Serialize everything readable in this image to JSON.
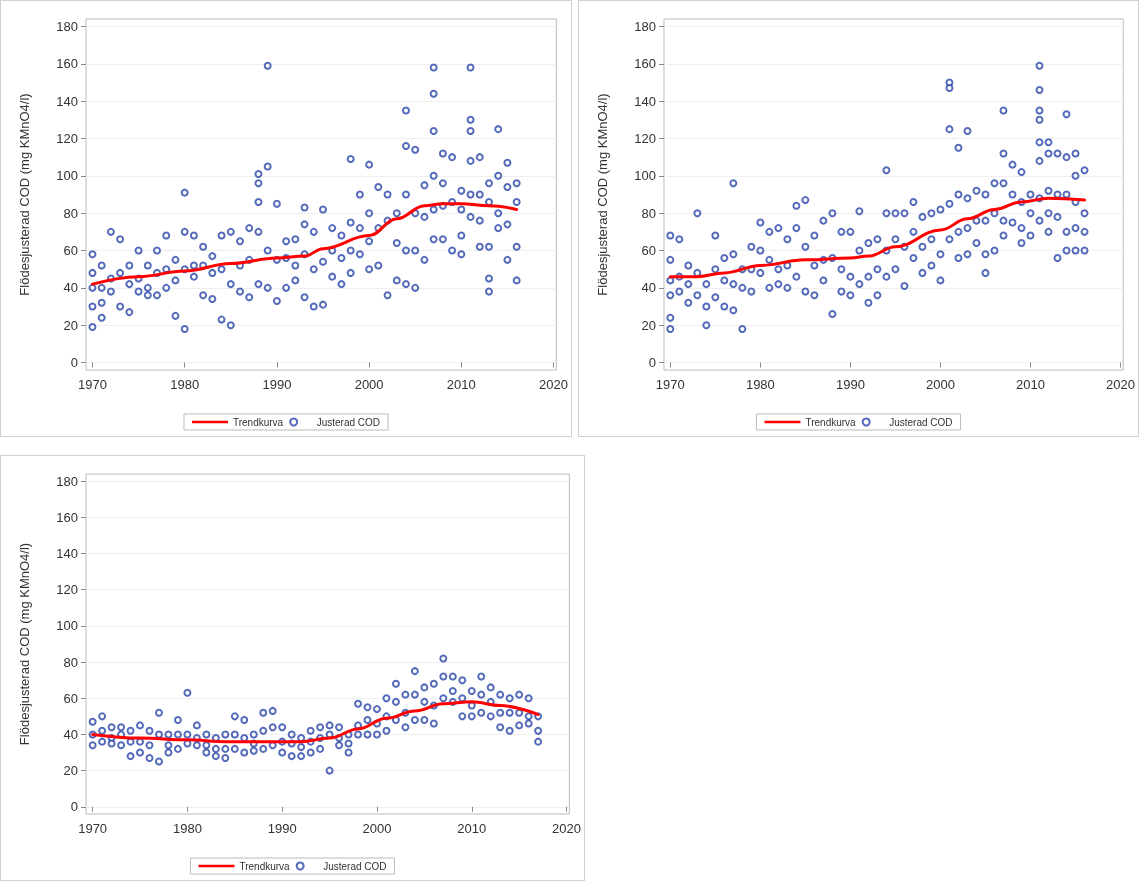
{
  "chart_data": [
    {
      "type": "scatter",
      "ylabel": "Flödesjusterad COD (mg KMnO4/l)",
      "xlim": [
        1969.3,
        2020.3
      ],
      "ylim": [
        -4,
        184
      ],
      "xticks": [
        1970,
        1980,
        1990,
        2000,
        2010,
        2020
      ],
      "yticks": [
        0,
        20,
        40,
        60,
        80,
        100,
        120,
        140,
        160,
        180
      ],
      "grid": "y",
      "legend": "bottom",
      "series": [
        {
          "type": "line",
          "name": "Trendkurva",
          "color": "#ff0000",
          "marker": "none",
          "x": [
            1970,
            1975,
            1980,
            1985,
            1990,
            1993,
            1995,
            2000,
            2003,
            2006,
            2008,
            2010,
            2013,
            2016
          ],
          "values": [
            42,
            46,
            49,
            53,
            56,
            57,
            61,
            68,
            77,
            84,
            85,
            85,
            84,
            82
          ]
        },
        {
          "name": "Justerad COD",
          "color": "#2a46a8",
          "marker": "circle",
          "x": [
            1970,
            1970,
            1970,
            1970,
            1970,
            1971,
            1971,
            1971,
            1971,
            1972,
            1972,
            1972,
            1973,
            1973,
            1973,
            1974,
            1974,
            1974,
            1975,
            1975,
            1975,
            1976,
            1976,
            1976,
            1977,
            1977,
            1977,
            1978,
            1978,
            1978,
            1979,
            1979,
            1979,
            1980,
            1980,
            1980,
            1980,
            1981,
            1981,
            1981,
            1982,
            1982,
            1982,
            1983,
            1983,
            1983,
            1984,
            1984,
            1984,
            1985,
            1985,
            1985,
            1986,
            1986,
            1986,
            1987,
            1987,
            1987,
            1988,
            1988,
            1988,
            1988,
            1988,
            1989,
            1989,
            1989,
            1989,
            1990,
            1990,
            1990,
            1991,
            1991,
            1991,
            1992,
            1992,
            1992,
            1993,
            1993,
            1993,
            1993,
            1994,
            1994,
            1994,
            1995,
            1995,
            1995,
            1996,
            1996,
            1996,
            1997,
            1997,
            1997,
            1998,
            1998,
            1998,
            1998,
            1999,
            1999,
            1999,
            2000,
            2000,
            2000,
            2000,
            2001,
            2001,
            2001,
            2002,
            2002,
            2002,
            2003,
            2003,
            2003,
            2004,
            2004,
            2004,
            2004,
            2004,
            2005,
            2005,
            2005,
            2005,
            2006,
            2006,
            2006,
            2007,
            2007,
            2007,
            2007,
            2007,
            2007,
            2008,
            2008,
            2008,
            2008,
            2009,
            2009,
            2009,
            2010,
            2010,
            2010,
            2010,
            2011,
            2011,
            2011,
            2011,
            2011,
            2011,
            2012,
            2012,
            2012,
            2012,
            2013,
            2013,
            2013,
            2013,
            2013,
            2014,
            2014,
            2014,
            2014,
            2015,
            2015,
            2015,
            2015,
            2016,
            2016,
            2016,
            2016
          ],
          "values": [
            58,
            48,
            40,
            30,
            19,
            52,
            40,
            32,
            24,
            70,
            45,
            38,
            66,
            48,
            30,
            52,
            42,
            27,
            60,
            45,
            38,
            52,
            40,
            36,
            60,
            48,
            36,
            68,
            50,
            40,
            55,
            44,
            25,
            91,
            70,
            50,
            18,
            68,
            52,
            46,
            62,
            52,
            36,
            57,
            48,
            34,
            68,
            50,
            23,
            70,
            42,
            20,
            65,
            52,
            38,
            72,
            55,
            35,
            101,
            96,
            86,
            70,
            42,
            159,
            105,
            60,
            40,
            85,
            55,
            33,
            65,
            56,
            40,
            66,
            52,
            44,
            83,
            74,
            58,
            35,
            70,
            50,
            30,
            82,
            54,
            31,
            72,
            60,
            46,
            68,
            56,
            42,
            109,
            75,
            60,
            48,
            90,
            72,
            58,
            106,
            80,
            65,
            50,
            94,
            72,
            52,
            90,
            76,
            36,
            80,
            64,
            44,
            135,
            116,
            90,
            60,
            42,
            114,
            80,
            60,
            40,
            95,
            78,
            55,
            158,
            144,
            124,
            100,
            82,
            66,
            112,
            96,
            84,
            66,
            110,
            86,
            60,
            92,
            82,
            68,
            58,
            158,
            130,
            124,
            108,
            90,
            78,
            110,
            90,
            76,
            62,
            96,
            86,
            62,
            45,
            38,
            125,
            100,
            80,
            72,
            107,
            94,
            74,
            55,
            96,
            86,
            62,
            44
          ]
        }
      ]
    },
    {
      "type": "scatter",
      "ylabel": "Flödesjusterad COD (mg KMnO4/l)",
      "xlim": [
        1969.3,
        2020.3
      ],
      "ylim": [
        -4,
        184
      ],
      "xticks": [
        1970,
        1980,
        1990,
        2000,
        2010,
        2020
      ],
      "yticks": [
        0,
        20,
        40,
        60,
        80,
        100,
        120,
        140,
        160,
        180
      ],
      "grid": "y",
      "legend": "bottom",
      "series": [
        {
          "type": "line",
          "name": "Trendkurva",
          "color": "#ff0000",
          "marker": "none",
          "x": [
            1970,
            1973,
            1976,
            1980,
            1985,
            1990,
            1992,
            1995,
            2000,
            2003,
            2006,
            2009,
            2012,
            2016
          ],
          "values": [
            46,
            46,
            48,
            52,
            55,
            56,
            57,
            62,
            71,
            77,
            82,
            86,
            88,
            87
          ]
        },
        {
          "name": "Justerad COD",
          "color": "#2a46a8",
          "marker": "circle",
          "x": [
            1970,
            1970,
            1970,
            1970,
            1970,
            1970,
            1971,
            1971,
            1971,
            1972,
            1972,
            1972,
            1973,
            1973,
            1973,
            1974,
            1974,
            1974,
            1975,
            1975,
            1975,
            1976,
            1976,
            1976,
            1977,
            1977,
            1977,
            1977,
            1978,
            1978,
            1978,
            1979,
            1979,
            1979,
            1980,
            1980,
            1980,
            1981,
            1981,
            1981,
            1982,
            1982,
            1982,
            1983,
            1983,
            1983,
            1984,
            1984,
            1984,
            1985,
            1985,
            1985,
            1986,
            1986,
            1986,
            1987,
            1987,
            1987,
            1988,
            1988,
            1988,
            1989,
            1989,
            1989,
            1990,
            1990,
            1990,
            1991,
            1991,
            1991,
            1992,
            1992,
            1992,
            1993,
            1993,
            1993,
            1994,
            1994,
            1994,
            1994,
            1995,
            1995,
            1995,
            1996,
            1996,
            1996,
            1997,
            1997,
            1997,
            1998,
            1998,
            1998,
            1999,
            1999,
            1999,
            2000,
            2000,
            2000,
            2001,
            2001,
            2001,
            2001,
            2001,
            2002,
            2002,
            2002,
            2002,
            2003,
            2003,
            2003,
            2003,
            2004,
            2004,
            2004,
            2005,
            2005,
            2005,
            2005,
            2006,
            2006,
            2006,
            2007,
            2007,
            2007,
            2007,
            2007,
            2008,
            2008,
            2008,
            2009,
            2009,
            2009,
            2009,
            2010,
            2010,
            2010,
            2011,
            2011,
            2011,
            2011,
            2011,
            2011,
            2011,
            2011,
            2012,
            2012,
            2012,
            2012,
            2012,
            2013,
            2013,
            2013,
            2013,
            2014,
            2014,
            2014,
            2014,
            2014,
            2015,
            2015,
            2015,
            2015,
            2015,
            2016,
            2016,
            2016,
            2016
          ],
          "values": [
            68,
            55,
            44,
            36,
            24,
            18,
            66,
            46,
            38,
            52,
            42,
            32,
            80,
            48,
            36,
            42,
            30,
            20,
            68,
            50,
            35,
            56,
            44,
            30,
            96,
            58,
            42,
            28,
            50,
            40,
            18,
            62,
            50,
            38,
            75,
            60,
            48,
            70,
            55,
            40,
            72,
            50,
            42,
            66,
            52,
            40,
            84,
            72,
            46,
            87,
            62,
            38,
            68,
            52,
            36,
            76,
            55,
            44,
            80,
            56,
            26,
            70,
            50,
            38,
            70,
            46,
            36,
            81,
            60,
            42,
            64,
            46,
            32,
            66,
            50,
            36,
            103,
            80,
            60,
            46,
            80,
            66,
            50,
            80,
            62,
            41,
            86,
            70,
            56,
            78,
            62,
            48,
            80,
            66,
            52,
            82,
            58,
            44,
            150,
            147,
            125,
            85,
            66,
            115,
            90,
            70,
            56,
            124,
            88,
            72,
            58,
            92,
            76,
            64,
            90,
            76,
            58,
            48,
            96,
            80,
            60,
            135,
            112,
            96,
            76,
            68,
            106,
            90,
            75,
            102,
            86,
            72,
            64,
            90,
            80,
            68,
            159,
            146,
            135,
            130,
            118,
            108,
            88,
            76,
            118,
            112,
            92,
            80,
            70,
            112,
            90,
            78,
            56,
            133,
            110,
            90,
            70,
            60,
            112,
            100,
            86,
            72,
            60,
            103,
            80,
            70,
            60
          ]
        }
      ]
    },
    {
      "type": "scatter",
      "ylabel": "Flödesjusterad COD (mg KMnO4/l)",
      "xlim": [
        1969.3,
        2020.3
      ],
      "ylim": [
        -4,
        184
      ],
      "xticks": [
        1970,
        1980,
        1990,
        2000,
        2010,
        2020
      ],
      "yticks": [
        0,
        20,
        40,
        60,
        80,
        100,
        120,
        140,
        160,
        180
      ],
      "grid": "y",
      "legend": "bottom",
      "series": [
        {
          "type": "line",
          "name": "Trendkurva",
          "color": "#ff0000",
          "marker": "none",
          "x": [
            1970,
            1975,
            1980,
            1984,
            1988,
            1992,
            1995,
            1998,
            2001,
            2004,
            2007,
            2010,
            2013,
            2017
          ],
          "values": [
            40,
            38,
            37,
            36,
            36,
            36,
            38,
            43,
            49,
            53,
            57,
            58,
            56,
            51
          ]
        },
        {
          "name": "Justerad COD",
          "color": "#2a46a8",
          "marker": "circle",
          "x": [
            1970,
            1970,
            1970,
            1971,
            1971,
            1971,
            1972,
            1972,
            1972,
            1973,
            1973,
            1973,
            1974,
            1974,
            1974,
            1975,
            1975,
            1975,
            1976,
            1976,
            1976,
            1977,
            1977,
            1977,
            1978,
            1978,
            1978,
            1979,
            1979,
            1979,
            1980,
            1980,
            1980,
            1981,
            1981,
            1981,
            1982,
            1982,
            1982,
            1983,
            1983,
            1983,
            1984,
            1984,
            1984,
            1985,
            1985,
            1985,
            1986,
            1986,
            1986,
            1987,
            1987,
            1987,
            1988,
            1988,
            1988,
            1989,
            1989,
            1989,
            1990,
            1990,
            1990,
            1991,
            1991,
            1991,
            1992,
            1992,
            1992,
            1993,
            1993,
            1993,
            1994,
            1994,
            1994,
            1995,
            1995,
            1995,
            1996,
            1996,
            1996,
            1997,
            1997,
            1997,
            1998,
            1998,
            1998,
            1999,
            1999,
            1999,
            2000,
            2000,
            2000,
            2001,
            2001,
            2001,
            2002,
            2002,
            2002,
            2003,
            2003,
            2003,
            2004,
            2004,
            2004,
            2005,
            2005,
            2005,
            2006,
            2006,
            2006,
            2007,
            2007,
            2007,
            2008,
            2008,
            2008,
            2009,
            2009,
            2009,
            2010,
            2010,
            2010,
            2011,
            2011,
            2011,
            2012,
            2012,
            2012,
            2013,
            2013,
            2013,
            2014,
            2014,
            2014,
            2015,
            2015,
            2015,
            2016,
            2016,
            2016,
            2017,
            2017,
            2017
          ],
          "values": [
            47,
            40,
            34,
            50,
            42,
            36,
            44,
            38,
            35,
            44,
            40,
            34,
            42,
            36,
            28,
            45,
            36,
            30,
            42,
            34,
            27,
            52,
            40,
            25,
            40,
            34,
            30,
            48,
            40,
            32,
            63,
            40,
            35,
            45,
            38,
            34,
            40,
            34,
            30,
            38,
            32,
            28,
            40,
            32,
            27,
            50,
            40,
            32,
            48,
            38,
            30,
            40,
            35,
            31,
            52,
            42,
            32,
            53,
            44,
            34,
            44,
            36,
            30,
            40,
            35,
            28,
            38,
            33,
            28,
            42,
            36,
            30,
            44,
            38,
            32,
            45,
            40,
            20,
            44,
            38,
            34,
            40,
            35,
            30,
            57,
            45,
            40,
            55,
            48,
            40,
            54,
            46,
            40,
            60,
            50,
            42,
            68,
            58,
            48,
            62,
            52,
            44,
            75,
            62,
            48,
            66,
            58,
            48,
            68,
            56,
            46,
            82,
            72,
            60,
            72,
            64,
            58,
            70,
            60,
            50,
            64,
            56,
            50,
            72,
            62,
            52,
            66,
            58,
            50,
            62,
            52,
            44,
            60,
            52,
            42,
            62,
            52,
            45,
            60,
            50,
            46,
            50,
            42,
            36
          ]
        }
      ]
    }
  ]
}
